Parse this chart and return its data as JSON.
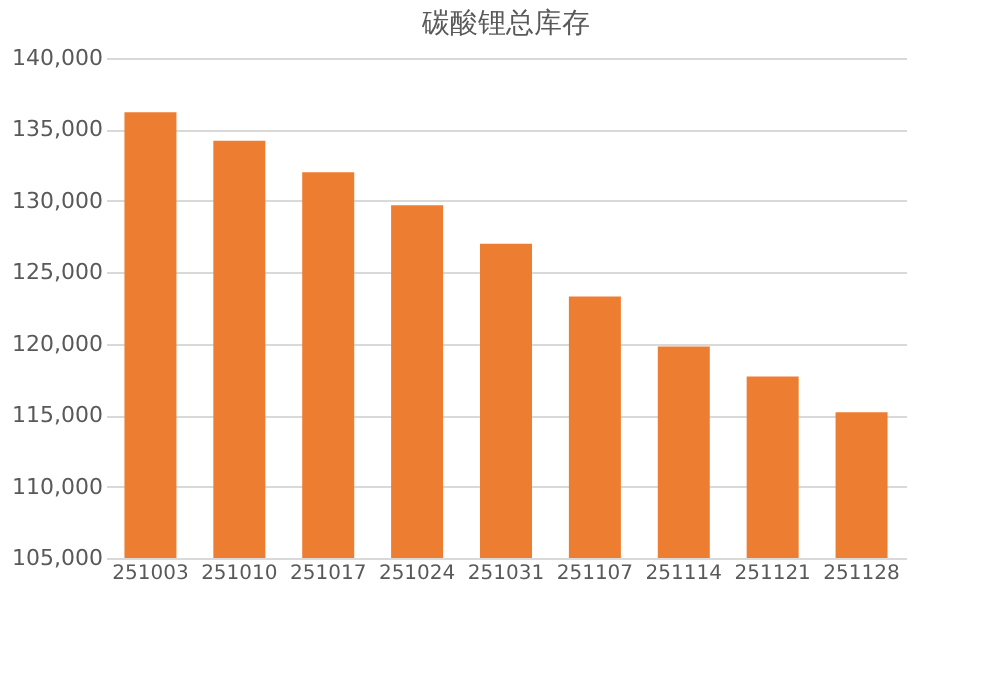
{
  "chart_data": {
    "type": "bar",
    "title": "碳酸锂总库存",
    "categories": [
      "251003",
      "251010",
      "251017",
      "251024",
      "251031",
      "251107",
      "251114",
      "251121",
      "251128"
    ],
    "values": [
      136200,
      134200,
      132000,
      129700,
      127000,
      123300,
      119800,
      117700,
      115200
    ],
    "color": "#ed7d31",
    "ylim": [
      105000,
      140000
    ],
    "yticks": [
      {
        "value": 105000,
        "label": "105,000"
      },
      {
        "value": 110000,
        "label": "110,000"
      },
      {
        "value": 115000,
        "label": "115,000"
      },
      {
        "value": 120000,
        "label": "120,000"
      },
      {
        "value": 125000,
        "label": "125,000"
      },
      {
        "value": 130000,
        "label": "130,000"
      },
      {
        "value": 135000,
        "label": "135,000"
      },
      {
        "value": 140000,
        "label": "140,000"
      }
    ],
    "grid": "y"
  }
}
